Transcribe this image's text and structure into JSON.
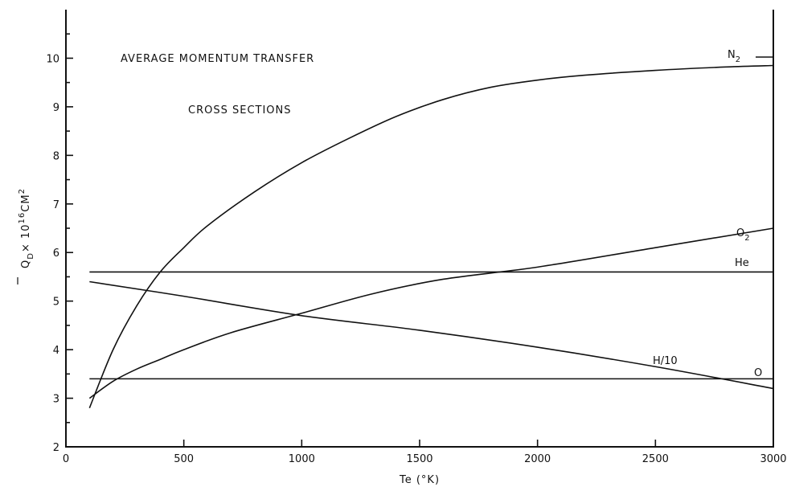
{
  "chart_data": {
    "type": "line",
    "title_line1": "AVERAGE  MOMENTUM  TRANSFER",
    "title_line2": "CROSS  SECTIONS",
    "xlabel": "Te (°K)",
    "ylabel": {
      "main": "Q",
      "sub": "D",
      "mid": "× 10",
      "exp": "16",
      "unit": "CM",
      "unitexp": "2"
    },
    "xlim": [
      0,
      3000
    ],
    "ylim": [
      2,
      11
    ],
    "xticks": [
      0,
      500,
      1000,
      1500,
      2000,
      2500,
      3000
    ],
    "xtick_labels": [
      "0",
      "500",
      "1000",
      "1500",
      "2000",
      "2500",
      "3000"
    ],
    "yticks": [
      2,
      3,
      4,
      5,
      6,
      7,
      8,
      9,
      10
    ],
    "ytick_labels": [
      "2",
      "3",
      "4",
      "5",
      "6",
      "7",
      "8",
      "9",
      "10"
    ],
    "grid": false,
    "series": [
      {
        "name": "N2",
        "label_main": "N",
        "label_sub": "2",
        "x": [
          100,
          200,
          300,
          400,
          500,
          600,
          800,
          1000,
          1200,
          1400,
          1600,
          1800,
          2000,
          2200,
          2500,
          2800,
          3000
        ],
        "y": [
          2.8,
          4.0,
          4.9,
          5.6,
          6.1,
          6.55,
          7.25,
          7.85,
          8.35,
          8.8,
          9.15,
          9.4,
          9.55,
          9.65,
          9.75,
          9.82,
          9.85
        ]
      },
      {
        "name": "O2",
        "label_main": "O",
        "label_sub": "2",
        "x": [
          100,
          200,
          300,
          400,
          500,
          700,
          1000,
          1300,
          1600,
          2000,
          2500,
          3000
        ],
        "y": [
          3.0,
          3.35,
          3.6,
          3.8,
          4.0,
          4.35,
          4.75,
          5.15,
          5.45,
          5.7,
          6.1,
          6.5
        ]
      },
      {
        "name": "He",
        "label_main": "He",
        "label_sub": "",
        "x": [
          100,
          3000
        ],
        "y": [
          5.6,
          5.6
        ]
      },
      {
        "name": "H/10",
        "label_main": "H/10",
        "label_sub": "",
        "x": [
          100,
          500,
          1000,
          1500,
          2000,
          2500,
          3000
        ],
        "y": [
          5.4,
          5.1,
          4.7,
          4.4,
          4.05,
          3.65,
          3.2
        ]
      },
      {
        "name": "O",
        "label_main": "O",
        "label_sub": "",
        "x": [
          100,
          3000
        ],
        "y": [
          3.4,
          3.4
        ]
      }
    ]
  }
}
